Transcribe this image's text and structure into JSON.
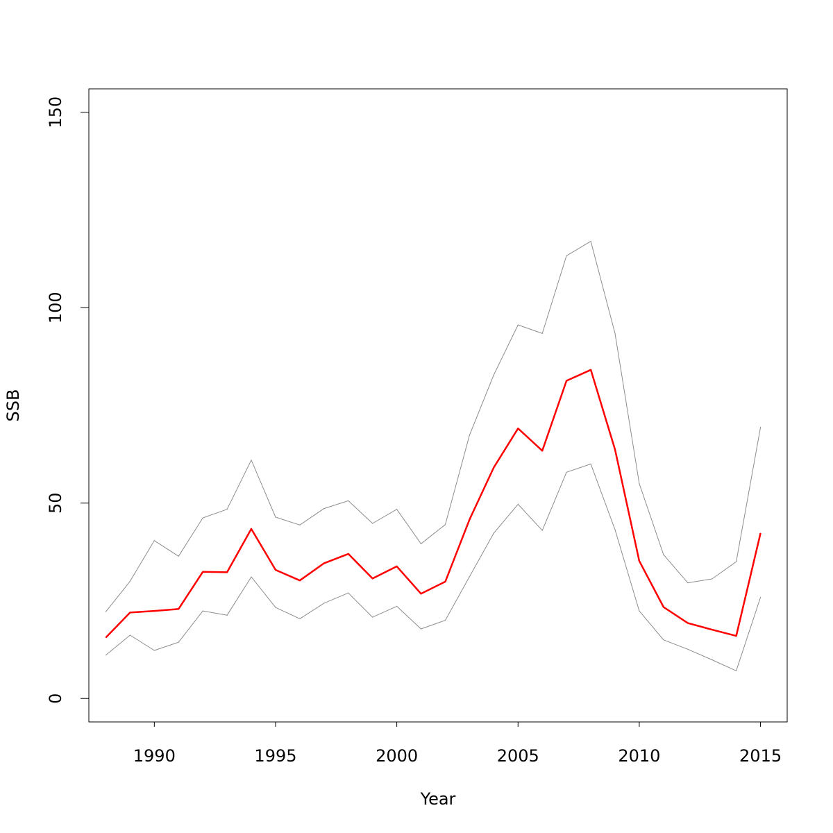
{
  "chart_data": {
    "type": "line",
    "title": "",
    "xlabel": "Year",
    "ylabel": "SSB",
    "xlim": [
      1987.3,
      2016.1
    ],
    "ylim": [
      -6,
      156
    ],
    "x_ticks": [
      1990,
      1995,
      2000,
      2005,
      2010,
      2015
    ],
    "y_ticks": [
      0,
      50,
      100,
      150
    ],
    "grid": false,
    "legend": "none",
    "x": [
      1988,
      1989,
      1990,
      1991,
      1992,
      1993,
      1994,
      1995,
      1996,
      1997,
      1998,
      1999,
      2000,
      2001,
      2002,
      2003,
      2004,
      2005,
      2006,
      2007,
      2008,
      2009,
      2010,
      2011,
      2012,
      2013,
      2014,
      2015
    ],
    "series": [
      {
        "role": "upper",
        "color": "#8c8c8c",
        "values": [
          22.2,
          30.0,
          40.4,
          36.4,
          46.2,
          48.4,
          61.0,
          46.4,
          44.4,
          48.6,
          50.6,
          44.8,
          48.4,
          39.6,
          44.5,
          67.4,
          82.8,
          95.6,
          93.4,
          113.3,
          117.0,
          93.4,
          55.0,
          36.8,
          29.6,
          30.6,
          35.0,
          69.4
        ]
      },
      {
        "role": "estimate",
        "color": "#ff0000",
        "values": [
          15.6,
          22.0,
          22.4,
          22.9,
          32.4,
          32.3,
          43.4,
          32.9,
          30.2,
          34.6,
          37.0,
          30.7,
          33.8,
          26.8,
          29.9,
          45.8,
          59.1,
          69.1,
          63.4,
          81.3,
          84.1,
          63.7,
          35.2,
          23.4,
          19.3,
          17.6,
          16.0,
          42.3
        ]
      },
      {
        "role": "lower",
        "color": "#8c8c8c",
        "values": [
          11.1,
          16.2,
          12.3,
          14.4,
          22.4,
          21.3,
          31.1,
          23.3,
          20.4,
          24.4,
          27.0,
          20.8,
          23.6,
          17.8,
          20.0,
          31.2,
          42.3,
          49.7,
          43.0,
          57.9,
          60.0,
          43.2,
          22.4,
          15.0,
          12.6,
          9.9,
          7.1,
          25.9
        ]
      }
    ]
  }
}
